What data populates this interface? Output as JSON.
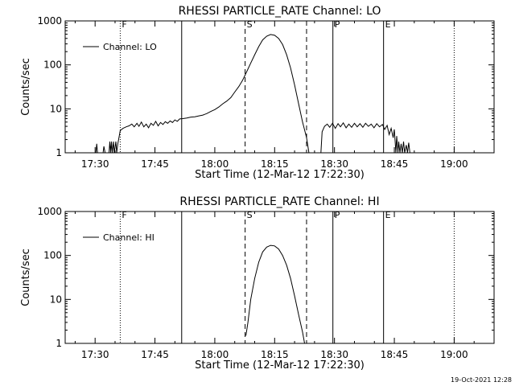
{
  "footer_timestamp": "19-Oct-2021 12:28",
  "chart_data": [
    {
      "type": "line",
      "title": "RHESSI PARTICLE_RATE Channel: LO",
      "xlabel": "Start Time (12-Mar-12 17:22:30)",
      "ylabel": "Counts/sec",
      "y_scale": "log",
      "ylim": [
        1,
        1000
      ],
      "xlim_minutes": [
        1042.5,
        1150
      ],
      "x_ticks": [
        {
          "value": 1050,
          "label": "17:30"
        },
        {
          "value": 1065,
          "label": "17:45"
        },
        {
          "value": 1080,
          "label": "18:00"
        },
        {
          "value": 1095,
          "label": "18:15"
        },
        {
          "value": 1110,
          "label": "18:30"
        },
        {
          "value": 1125,
          "label": "18:45"
        },
        {
          "value": 1140,
          "label": "19:00"
        }
      ],
      "y_ticks": [
        {
          "value": 1,
          "label": "1"
        },
        {
          "value": 10,
          "label": "10"
        },
        {
          "value": 100,
          "label": "100"
        },
        {
          "value": 1000,
          "label": "1000"
        }
      ],
      "legend": {
        "placement": "top-left",
        "label": "Channel: LO"
      },
      "markers": [
        {
          "x": 1056.3,
          "style": "dotted",
          "label": "F"
        },
        {
          "x": 1071.7,
          "style": "solid",
          "label": ""
        },
        {
          "x": 1087.6,
          "style": "dashed",
          "label": "S"
        },
        {
          "x": 1103.0,
          "style": "dashed",
          "label": ""
        },
        {
          "x": 1109.6,
          "style": "solid",
          "label": "P"
        },
        {
          "x": 1122.3,
          "style": "solid",
          "label": "E"
        },
        {
          "x": 1140.0,
          "style": "dotted",
          "label": ""
        }
      ],
      "series": [
        {
          "name": "Channel: LO",
          "segments": [
            [
              [
                1050.2,
                1
              ],
              [
                1050.4,
                1.6
              ],
              [
                1050.6,
                1
              ],
              [
                1052.0,
                1
              ],
              [
                1052.2,
                1.4
              ],
              [
                1052.5,
                1
              ],
              [
                1053.5,
                1
              ],
              [
                1053.7,
                1.8
              ],
              [
                1053.9,
                1
              ],
              [
                1054.1,
                1.8
              ],
              [
                1054.3,
                1
              ],
              [
                1054.6,
                1.8
              ],
              [
                1054.8,
                1
              ],
              [
                1055.2,
                1.8
              ],
              [
                1055.4,
                1
              ],
              [
                1055.7,
                1.6
              ],
              [
                1055.9,
                2.0
              ],
              [
                1056.3,
                3.2
              ],
              [
                1057.0,
                3.6
              ],
              [
                1057.8,
                3.9
              ],
              [
                1058.5,
                4.1
              ],
              [
                1059.2,
                4.5
              ],
              [
                1059.8,
                3.9
              ],
              [
                1060.5,
                4.7
              ],
              [
                1061.0,
                4.0
              ],
              [
                1061.6,
                5.0
              ],
              [
                1062.2,
                3.9
              ],
              [
                1062.8,
                4.5
              ],
              [
                1063.4,
                3.7
              ],
              [
                1064.0,
                4.7
              ],
              [
                1064.6,
                4.2
              ],
              [
                1065.2,
                5.2
              ],
              [
                1065.8,
                4.1
              ],
              [
                1066.4,
                4.9
              ],
              [
                1067.0,
                4.4
              ],
              [
                1067.6,
                5.1
              ],
              [
                1068.2,
                4.7
              ],
              [
                1068.8,
                5.3
              ],
              [
                1069.4,
                4.9
              ],
              [
                1070.0,
                5.6
              ],
              [
                1070.6,
                5.2
              ],
              [
                1071.2,
                5.9
              ],
              [
                1072.0,
                6.0
              ],
              [
                1073.0,
                6.2
              ],
              [
                1074.0,
                6.5
              ],
              [
                1075.0,
                6.6
              ],
              [
                1076.0,
                6.9
              ],
              [
                1077.0,
                7.2
              ],
              [
                1078.0,
                7.8
              ],
              [
                1079.0,
                8.7
              ],
              [
                1080.0,
                9.6
              ],
              [
                1081.0,
                11
              ],
              [
                1082.0,
                13
              ],
              [
                1083.0,
                15
              ],
              [
                1084.0,
                18
              ],
              [
                1085.0,
                24
              ],
              [
                1086.0,
                32
              ],
              [
                1087.0,
                45
              ],
              [
                1088.0,
                70
              ],
              [
                1089.0,
                110
              ],
              [
                1090.0,
                170
              ],
              [
                1091.0,
                260
              ],
              [
                1092.0,
                370
              ],
              [
                1093.0,
                450
              ],
              [
                1094.0,
                490
              ],
              [
                1095.0,
                470
              ],
              [
                1096.0,
                400
              ],
              [
                1097.0,
                290
              ],
              [
                1098.0,
                170
              ],
              [
                1099.0,
                85
              ],
              [
                1100.0,
                35
              ],
              [
                1101.0,
                13
              ],
              [
                1102.0,
                5
              ],
              [
                1103.0,
                2.2
              ],
              [
                1103.6,
                1
              ]
            ],
            [
              [
                1106.6,
                1
              ],
              [
                1106.9,
                3.0
              ],
              [
                1107.5,
                4.0
              ],
              [
                1108.2,
                4.5
              ],
              [
                1108.8,
                3.8
              ],
              [
                1109.5,
                4.7
              ],
              [
                1110.2,
                3.6
              ],
              [
                1110.9,
                4.6
              ],
              [
                1111.5,
                3.9
              ],
              [
                1112.2,
                4.8
              ],
              [
                1112.9,
                3.7
              ],
              [
                1113.6,
                4.5
              ],
              [
                1114.3,
                3.8
              ],
              [
                1115.0,
                4.7
              ],
              [
                1115.7,
                3.9
              ],
              [
                1116.4,
                4.6
              ],
              [
                1117.1,
                3.8
              ],
              [
                1117.8,
                4.7
              ],
              [
                1118.5,
                4.0
              ],
              [
                1119.2,
                4.5
              ],
              [
                1119.9,
                3.7
              ],
              [
                1120.6,
                4.6
              ],
              [
                1121.3,
                3.9
              ],
              [
                1122.0,
                4.4
              ],
              [
                1122.6,
                3.4
              ],
              [
                1123.2,
                4.2
              ],
              [
                1123.7,
                2.6
              ],
              [
                1124.2,
                3.6
              ],
              [
                1124.7,
                2.2
              ],
              [
                1125.0,
                3.4
              ],
              [
                1125.4,
                1
              ],
              [
                1125.6,
                2.4
              ],
              [
                1125.9,
                1
              ],
              [
                1126.1,
                1.8
              ],
              [
                1126.4,
                1
              ],
              [
                1126.7,
                1.6
              ],
              [
                1127.0,
                1
              ],
              [
                1127.3,
                1.8
              ],
              [
                1127.6,
                1
              ],
              [
                1128.0,
                1.5
              ],
              [
                1128.3,
                1
              ],
              [
                1128.6,
                1.7
              ],
              [
                1128.9,
                1
              ]
            ]
          ]
        }
      ]
    },
    {
      "type": "line",
      "title": "RHESSI PARTICLE_RATE Channel: HI",
      "xlabel": "Start Time (12-Mar-12 17:22:30)",
      "ylabel": "Counts/sec",
      "y_scale": "log",
      "ylim": [
        1,
        1000
      ],
      "xlim_minutes": [
        1042.5,
        1150
      ],
      "x_ticks": [
        {
          "value": 1050,
          "label": "17:30"
        },
        {
          "value": 1065,
          "label": "17:45"
        },
        {
          "value": 1080,
          "label": "18:00"
        },
        {
          "value": 1095,
          "label": "18:15"
        },
        {
          "value": 1110,
          "label": "18:30"
        },
        {
          "value": 1125,
          "label": "18:45"
        },
        {
          "value": 1140,
          "label": "19:00"
        }
      ],
      "y_ticks": [
        {
          "value": 1,
          "label": "1"
        },
        {
          "value": 10,
          "label": "10"
        },
        {
          "value": 100,
          "label": "100"
        },
        {
          "value": 1000,
          "label": "1000"
        }
      ],
      "legend": {
        "placement": "top-left",
        "label": "Channel: HI"
      },
      "markers": [
        {
          "x": 1056.3,
          "style": "dotted",
          "label": "F"
        },
        {
          "x": 1071.7,
          "style": "solid",
          "label": ""
        },
        {
          "x": 1087.6,
          "style": "dashed",
          "label": "S"
        },
        {
          "x": 1103.0,
          "style": "dashed",
          "label": ""
        },
        {
          "x": 1109.6,
          "style": "solid",
          "label": "P"
        },
        {
          "x": 1122.3,
          "style": "solid",
          "label": "E"
        },
        {
          "x": 1140.0,
          "style": "dotted",
          "label": ""
        }
      ],
      "series": [
        {
          "name": "Channel: HI",
          "segments": [
            [
              [
                1087.8,
                1.5
              ],
              [
                1088.3,
                3
              ],
              [
                1089.0,
                10
              ],
              [
                1090.0,
                30
              ],
              [
                1091.0,
                70
              ],
              [
                1092.0,
                120
              ],
              [
                1093.0,
                155
              ],
              [
                1094.0,
                170
              ],
              [
                1095.0,
                165
              ],
              [
                1096.0,
                140
              ],
              [
                1097.0,
                100
              ],
              [
                1098.0,
                60
              ],
              [
                1099.0,
                30
              ],
              [
                1100.0,
                12
              ],
              [
                1101.0,
                4.5
              ],
              [
                1102.0,
                1.8
              ],
              [
                1102.5,
                1
              ]
            ]
          ]
        }
      ]
    }
  ]
}
